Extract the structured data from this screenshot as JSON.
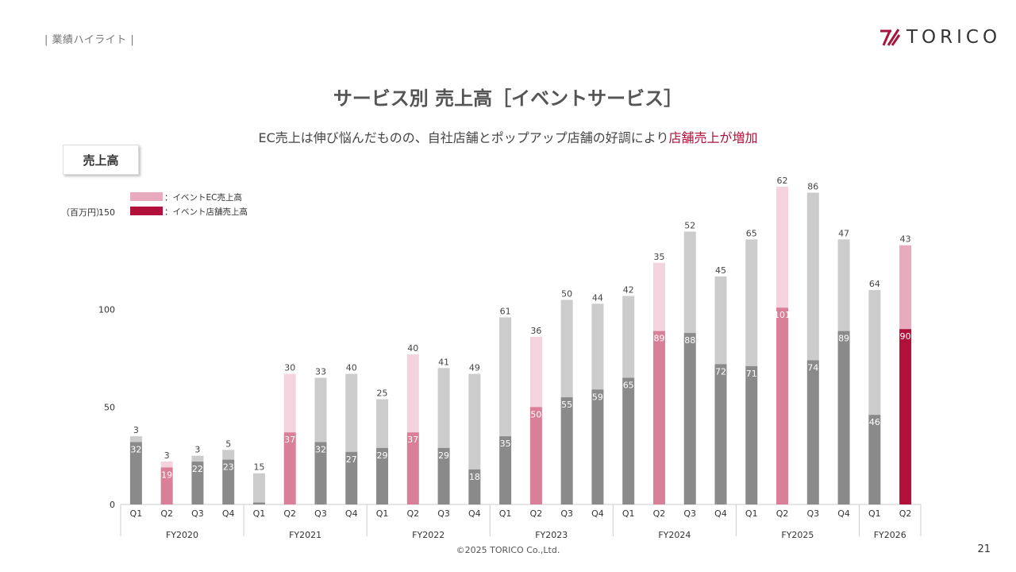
{
  "header": {
    "section_label": "| 業績ハイライト |",
    "logo_text": "TORICO"
  },
  "title": "サービス別 売上高［イベントサービス］",
  "subtitle": {
    "text": "EC売上は伸び悩んだものの、自社店舗とポップアップ店舗の好調により",
    "highlight": "店舗売上が増加"
  },
  "badge": "売上高",
  "colors": {
    "store_highlight": "#b0103a",
    "ec_highlight": "#e8aabd",
    "store_mid": "#d98098",
    "ec_light": "#f3d3dd",
    "store_gray": "#8a8a8a",
    "ec_gray": "#cccccc",
    "brand": "#a6153f"
  },
  "chart_data": {
    "type": "bar",
    "stacked": true,
    "title": "サービス別 売上高［イベントサービス］",
    "unit_label": "（百万円）",
    "ylim": [
      0,
      150
    ],
    "yticks": [
      0,
      50,
      100,
      150
    ],
    "legend": [
      {
        "label": "：イベントEC売上高",
        "color_key": "ec_highlight"
      },
      {
        "label": "：イベント店舗売上高",
        "color_key": "store_highlight"
      }
    ],
    "fiscal_years": [
      {
        "label": "FY2020",
        "quarters": [
          "Q1",
          "Q2",
          "Q3",
          "Q4"
        ]
      },
      {
        "label": "FY2021",
        "quarters": [
          "Q1",
          "Q2",
          "Q3",
          "Q4"
        ]
      },
      {
        "label": "FY2022",
        "quarters": [
          "Q1",
          "Q2",
          "Q3",
          "Q4"
        ]
      },
      {
        "label": "FY2023",
        "quarters": [
          "Q1",
          "Q2",
          "Q3",
          "Q4"
        ]
      },
      {
        "label": "FY2024",
        "quarters": [
          "Q1",
          "Q2",
          "Q3",
          "Q4"
        ]
      },
      {
        "label": "FY2025",
        "quarters": [
          "Q1",
          "Q2",
          "Q3",
          "Q4"
        ]
      },
      {
        "label": "FY2026",
        "quarters": [
          "Q1",
          "Q2"
        ]
      }
    ],
    "series": [
      {
        "name": "イベント店舗売上高",
        "values": [
          32,
          19,
          22,
          23,
          1,
          37,
          32,
          27,
          29,
          37,
          29,
          18,
          35,
          50,
          55,
          59,
          65,
          89,
          88,
          72,
          71,
          101,
          74,
          89,
          46,
          90
        ]
      },
      {
        "name": "イベントEC売上高",
        "values": [
          3,
          3,
          3,
          5,
          15,
          30,
          33,
          40,
          25,
          40,
          41,
          49,
          61,
          36,
          50,
          44,
          42,
          35,
          52,
          45,
          65,
          62,
          86,
          47,
          64,
          43
        ]
      }
    ],
    "bar_styles": [
      "gray",
      "mid",
      "gray",
      "gray",
      "gray",
      "mid",
      "gray",
      "gray",
      "gray",
      "mid",
      "gray",
      "gray",
      "gray",
      "mid",
      "gray",
      "gray",
      "gray",
      "mid",
      "gray",
      "gray",
      "gray",
      "mid",
      "gray",
      "gray",
      "gray",
      "highlight"
    ]
  },
  "footer": "©2025 TORICO Co.,Ltd.",
  "page_number": "21"
}
